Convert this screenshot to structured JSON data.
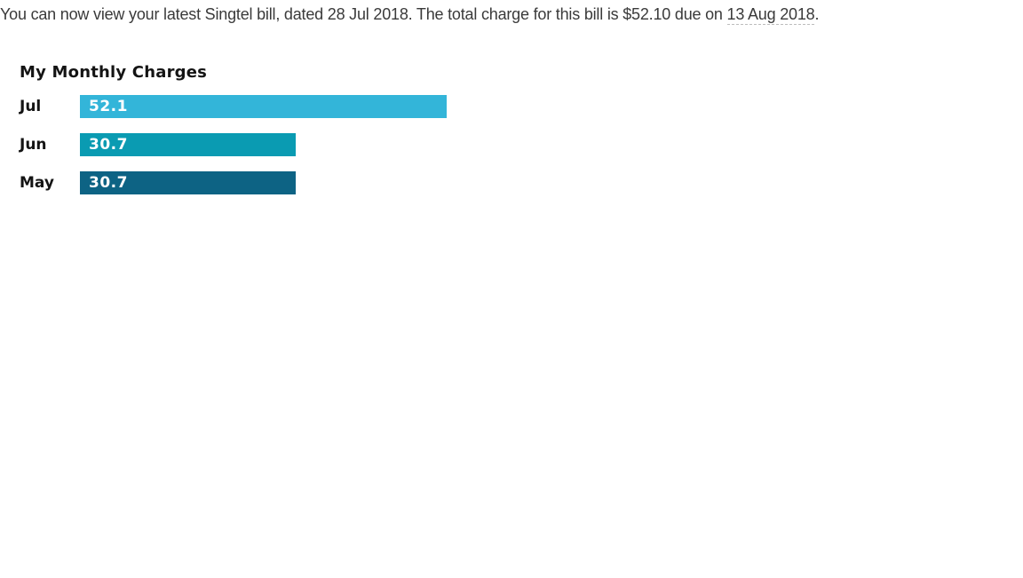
{
  "page": {
    "background": "#ffffff"
  },
  "message": {
    "text_before_due": "You can now view your latest Singtel bill, dated 28 Jul 2018. The total charge for this bill is $52.10 due on ",
    "due_date": "13 Aug 2018",
    "text_after_due": ".",
    "bill_date": "28 Jul 2018",
    "total_charge": "$52.10"
  },
  "chart_data": {
    "type": "bar",
    "orientation": "horizontal",
    "title": "My Monthly Charges",
    "categories": [
      "Jul",
      "Jun",
      "May"
    ],
    "values": [
      52.1,
      30.7,
      30.7
    ],
    "value_labels": [
      "52.1",
      "30.7",
      "30.7"
    ],
    "bar_colors": [
      "#33b5d9",
      "#0a9bb2",
      "#0d6384"
    ],
    "value_label_color": "#ffffff",
    "xlim": [
      0,
      52.1
    ],
    "grid": false,
    "legend": "none"
  }
}
